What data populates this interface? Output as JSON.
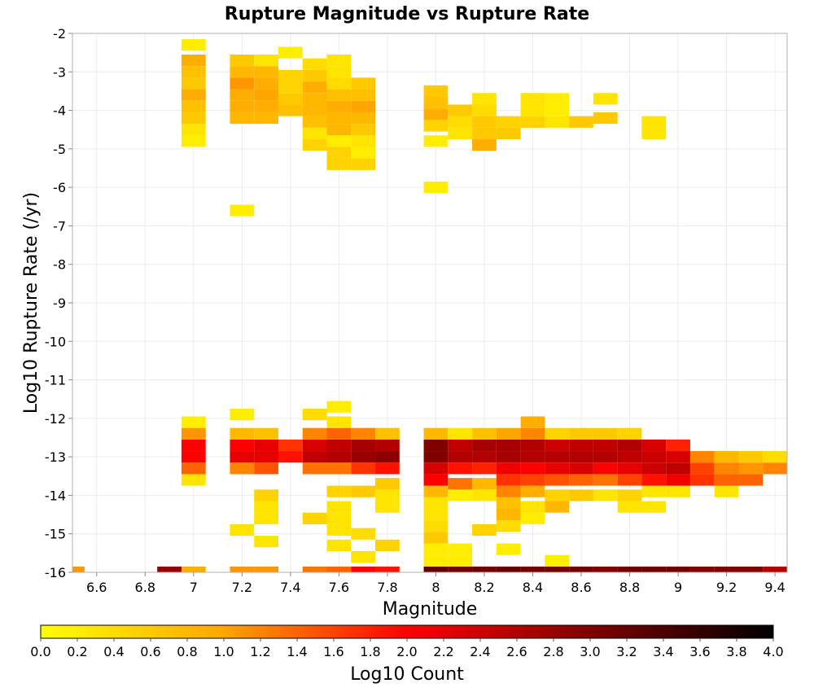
{
  "chart_data": {
    "type": "heatmap",
    "title": "Rupture Magnitude vs Rupture Rate",
    "xlabel": "Magnitude",
    "ylabel": "Log10 Rupture Rate (/yr)",
    "xlim": [
      6.5,
      9.45
    ],
    "ylim": [
      -16,
      -2
    ],
    "x_ticks": [
      "6.6",
      "6.8",
      "7",
      "7.2",
      "7.4",
      "7.6",
      "7.8",
      "8",
      "8.2",
      "8.4",
      "8.6",
      "8.8",
      "9",
      "9.2",
      "9.4"
    ],
    "y_ticks": [
      "-2",
      "-3",
      "-4",
      "-5",
      "-6",
      "-7",
      "-8",
      "-9",
      "-10",
      "-11",
      "-12",
      "-13",
      "-14",
      "-15",
      "-16"
    ],
    "grid": true,
    "cell_size": {
      "magnitude": 0.1,
      "log10_rate": 0.3
    },
    "colorbar": {
      "label": "Log10 Count",
      "range": [
        0,
        4
      ],
      "ticks": [
        "0.0",
        "0.2",
        "0.4",
        "0.6",
        "0.8",
        "1.0",
        "1.2",
        "1.4",
        "1.6",
        "1.8",
        "2.0",
        "2.2",
        "2.4",
        "2.6",
        "2.8",
        "3.0",
        "3.2",
        "3.4",
        "3.6",
        "3.8",
        "4.0"
      ],
      "colors": [
        "#ffff00",
        "#ffa500",
        "#ff0000",
        "#800000",
        "#000000"
      ]
    },
    "series": [
      {
        "magnitude": 7.0,
        "values": [
          [
            -16.0,
            0.9
          ],
          [
            -13.6,
            0.3
          ],
          [
            -13.3,
            1.4
          ],
          [
            -13.0,
            2.0
          ],
          [
            -12.7,
            2.0
          ],
          [
            -12.4,
            1.1
          ],
          [
            -12.1,
            0.2
          ],
          [
            -4.8,
            0.2
          ],
          [
            -4.5,
            0.3
          ],
          [
            -4.2,
            0.6
          ],
          [
            -3.9,
            0.7
          ],
          [
            -3.6,
            0.9
          ],
          [
            -3.3,
            0.6
          ],
          [
            -3.0,
            0.7
          ],
          [
            -2.7,
            0.9
          ],
          [
            -2.3,
            0.2
          ]
        ]
      },
      {
        "magnitude": 7.2,
        "values": [
          [
            -16.0,
            1.1
          ],
          [
            -14.9,
            0.3
          ],
          [
            -13.3,
            1.2
          ],
          [
            -13.0,
            2.2
          ],
          [
            -12.7,
            2.0
          ],
          [
            -12.4,
            0.8
          ],
          [
            -11.9,
            0.2
          ],
          [
            -6.6,
            0.2
          ],
          [
            -4.2,
            0.8
          ],
          [
            -3.9,
            0.9
          ],
          [
            -3.6,
            0.9
          ],
          [
            -3.3,
            1.1
          ],
          [
            -3.0,
            0.8
          ],
          [
            -2.7,
            0.6
          ]
        ]
      },
      {
        "magnitude": 7.3,
        "values": [
          [
            -16.0,
            1.1
          ],
          [
            -15.2,
            0.3
          ],
          [
            -14.6,
            0.3
          ],
          [
            -14.3,
            0.3
          ],
          [
            -14.0,
            0.5
          ],
          [
            -13.3,
            1.5
          ],
          [
            -13.0,
            2.2
          ],
          [
            -12.7,
            2.2
          ],
          [
            -12.4,
            0.7
          ],
          [
            -4.2,
            0.8
          ],
          [
            -3.9,
            0.9
          ],
          [
            -3.6,
            1.0
          ],
          [
            -3.3,
            0.9
          ],
          [
            -3.0,
            0.8
          ],
          [
            -2.7,
            0.3
          ]
        ]
      },
      {
        "magnitude": 7.4,
        "values": [
          [
            -13.0,
            1.9
          ],
          [
            -12.7,
            1.7
          ],
          [
            -4.0,
            0.7
          ],
          [
            -3.7,
            0.6
          ],
          [
            -3.4,
            0.5
          ],
          [
            -3.1,
            0.5
          ],
          [
            -2.5,
            0.2
          ]
        ]
      },
      {
        "magnitude": 7.5,
        "values": [
          [
            -16.0,
            1.3
          ],
          [
            -14.6,
            0.5
          ],
          [
            -13.3,
            1.3
          ],
          [
            -13.0,
            2.5
          ],
          [
            -12.7,
            2.3
          ],
          [
            -12.4,
            1.2
          ],
          [
            -11.9,
            0.4
          ],
          [
            -4.9,
            0.5
          ],
          [
            -4.6,
            0.3
          ],
          [
            -4.3,
            0.7
          ],
          [
            -4.0,
            0.8
          ],
          [
            -3.7,
            0.8
          ],
          [
            -3.4,
            0.9
          ],
          [
            -3.1,
            0.6
          ],
          [
            -2.8,
            0.4
          ]
        ]
      },
      {
        "magnitude": 7.6,
        "values": [
          [
            -16.0,
            1.4
          ],
          [
            -15.3,
            0.3
          ],
          [
            -14.9,
            0.3
          ],
          [
            -14.6,
            0.3
          ],
          [
            -14.3,
            0.3
          ],
          [
            -13.9,
            0.5
          ],
          [
            -13.3,
            1.3
          ],
          [
            -13.0,
            2.6
          ],
          [
            -12.7,
            2.5
          ],
          [
            -12.4,
            1.4
          ],
          [
            -12.1,
            0.3
          ],
          [
            -11.7,
            0.2
          ],
          [
            -5.4,
            0.5
          ],
          [
            -5.1,
            0.5
          ],
          [
            -4.8,
            0.2
          ],
          [
            -4.5,
            0.8
          ],
          [
            -4.2,
            0.8
          ],
          [
            -3.9,
            0.9
          ],
          [
            -3.6,
            0.7
          ],
          [
            -3.3,
            0.4
          ],
          [
            -3.0,
            0.3
          ],
          [
            -2.7,
            0.3
          ]
        ]
      },
      {
        "magnitude": 7.7,
        "values": [
          [
            -16.0,
            2.0
          ],
          [
            -15.6,
            0.3
          ],
          [
            -15.0,
            0.4
          ],
          [
            -13.9,
            0.6
          ],
          [
            -13.3,
            1.7
          ],
          [
            -13.0,
            2.8
          ],
          [
            -12.7,
            2.7
          ],
          [
            -12.4,
            1.2
          ],
          [
            -5.4,
            0.5
          ],
          [
            -5.1,
            0.2
          ],
          [
            -4.8,
            0.3
          ],
          [
            -4.5,
            0.6
          ],
          [
            -4.2,
            0.8
          ],
          [
            -3.9,
            1.0
          ],
          [
            -3.6,
            0.7
          ],
          [
            -3.3,
            0.6
          ]
        ]
      },
      {
        "magnitude": 7.8,
        "values": [
          [
            -16.0,
            1.9
          ],
          [
            -14.3,
            0.3
          ],
          [
            -14.0,
            0.3
          ],
          [
            -13.7,
            0.6
          ],
          [
            -13.3,
            1.9
          ],
          [
            -13.0,
            2.9
          ],
          [
            -12.7,
            2.6
          ],
          [
            -12.4,
            0.7
          ],
          [
            -15.3,
            0.5
          ]
        ]
      },
      {
        "magnitude": 8.0,
        "values": [
          [
            -16.0,
            3.2
          ],
          [
            -15.7,
            0.2
          ],
          [
            -15.4,
            0.2
          ],
          [
            -15.1,
            0.6
          ],
          [
            -14.8,
            0.4
          ],
          [
            -14.5,
            0.3
          ],
          [
            -14.2,
            0.3
          ],
          [
            -13.9,
            0.8
          ],
          [
            -13.6,
            2.0
          ],
          [
            -13.3,
            2.3
          ],
          [
            -13.0,
            3.0
          ],
          [
            -12.7,
            3.0
          ],
          [
            -12.4,
            0.8
          ],
          [
            -6.0,
            0.2
          ],
          [
            -4.8,
            0.2
          ],
          [
            -4.4,
            0.5
          ],
          [
            -4.1,
            0.9
          ],
          [
            -3.8,
            0.7
          ],
          [
            -3.5,
            0.6
          ]
        ]
      },
      {
        "magnitude": 8.1,
        "values": [
          [
            -16.0,
            3.1
          ],
          [
            -15.7,
            0.2
          ],
          [
            -15.4,
            0.2
          ],
          [
            -14.0,
            0.2
          ],
          [
            -13.7,
            1.3
          ],
          [
            -13.3,
            1.9
          ],
          [
            -13.0,
            2.6
          ],
          [
            -12.7,
            2.5
          ],
          [
            -12.4,
            0.3
          ],
          [
            -4.6,
            0.3
          ],
          [
            -4.3,
            0.4
          ],
          [
            -4.0,
            0.6
          ]
        ]
      },
      {
        "magnitude": 8.2,
        "values": [
          [
            -16.0,
            3.1
          ],
          [
            -14.9,
            0.5
          ],
          [
            -14.0,
            0.3
          ],
          [
            -13.7,
            0.8
          ],
          [
            -13.3,
            1.8
          ],
          [
            -13.0,
            2.6
          ],
          [
            -12.7,
            2.7
          ],
          [
            -12.4,
            0.7
          ],
          [
            -4.9,
            0.9
          ],
          [
            -4.6,
            0.6
          ],
          [
            -4.3,
            0.6
          ],
          [
            -4.0,
            0.4
          ],
          [
            -3.7,
            0.3
          ]
        ]
      },
      {
        "magnitude": 8.3,
        "values": [
          [
            -16.0,
            3.2
          ],
          [
            -15.4,
            0.2
          ],
          [
            -14.8,
            0.4
          ],
          [
            -14.5,
            0.8
          ],
          [
            -14.2,
            0.7
          ],
          [
            -13.9,
            1.2
          ],
          [
            -13.6,
            1.7
          ],
          [
            -13.3,
            2.1
          ],
          [
            -13.0,
            2.7
          ],
          [
            -12.7,
            2.7
          ],
          [
            -12.4,
            1.0
          ],
          [
            -4.6,
            0.6
          ],
          [
            -4.3,
            0.5
          ]
        ]
      },
      {
        "magnitude": 8.4,
        "values": [
          [
            -16.0,
            3.1
          ],
          [
            -14.6,
            0.2
          ],
          [
            -14.3,
            0.3
          ],
          [
            -13.9,
            0.9
          ],
          [
            -13.6,
            1.6
          ],
          [
            -13.3,
            2.0
          ],
          [
            -13.0,
            2.6
          ],
          [
            -12.7,
            2.6
          ],
          [
            -12.4,
            1.2
          ],
          [
            -12.1,
            0.9
          ],
          [
            -4.3,
            0.5
          ],
          [
            -4.0,
            0.3
          ],
          [
            -3.7,
            0.3
          ]
        ]
      },
      {
        "magnitude": 8.5,
        "values": [
          [
            -16.0,
            3.1
          ],
          [
            -15.7,
            0.2
          ],
          [
            -14.3,
            0.8
          ],
          [
            -14.0,
            0.5
          ],
          [
            -13.6,
            1.5
          ],
          [
            -13.3,
            2.2
          ],
          [
            -13.0,
            2.6
          ],
          [
            -12.7,
            2.4
          ],
          [
            -12.4,
            0.5
          ],
          [
            -4.3,
            0.3
          ],
          [
            -4.0,
            0.2
          ],
          [
            -3.7,
            0.2
          ]
        ]
      },
      {
        "magnitude": 8.6,
        "values": [
          [
            -16.0,
            3.1
          ],
          [
            -14.0,
            0.6
          ],
          [
            -13.6,
            1.4
          ],
          [
            -13.3,
            2.3
          ],
          [
            -13.0,
            2.6
          ],
          [
            -12.7,
            2.5
          ],
          [
            -12.4,
            0.6
          ],
          [
            -4.3,
            0.6
          ]
        ]
      },
      {
        "magnitude": 8.7,
        "values": [
          [
            -16.0,
            3.0
          ],
          [
            -14.0,
            0.3
          ],
          [
            -13.6,
            1.3
          ],
          [
            -13.3,
            2.0
          ],
          [
            -13.0,
            2.6
          ],
          [
            -12.7,
            2.5
          ],
          [
            -12.4,
            0.6
          ],
          [
            -4.2,
            0.6
          ],
          [
            -3.7,
            0.3
          ]
        ]
      },
      {
        "magnitude": 8.8,
        "values": [
          [
            -16.0,
            3.1
          ],
          [
            -14.3,
            0.3
          ],
          [
            -14.0,
            0.5
          ],
          [
            -13.6,
            1.6
          ],
          [
            -13.3,
            2.2
          ],
          [
            -13.0,
            2.5
          ],
          [
            -12.7,
            2.6
          ],
          [
            -12.4,
            0.5
          ]
        ]
      },
      {
        "magnitude": 8.9,
        "values": [
          [
            -16.0,
            3.1
          ],
          [
            -14.3,
            0.3
          ],
          [
            -13.9,
            0.3
          ],
          [
            -13.6,
            1.9
          ],
          [
            -13.3,
            2.4
          ],
          [
            -13.0,
            2.4
          ],
          [
            -12.7,
            2.3
          ],
          [
            -4.6,
            0.3
          ],
          [
            -4.3,
            0.3
          ]
        ]
      },
      {
        "magnitude": 9.0,
        "values": [
          [
            -16.0,
            3.1
          ],
          [
            -13.9,
            0.3
          ],
          [
            -13.6,
            2.1
          ],
          [
            -13.3,
            2.5
          ],
          [
            -13.0,
            2.3
          ],
          [
            -12.7,
            1.8
          ]
        ]
      },
      {
        "magnitude": 9.1,
        "values": [
          [
            -16.0,
            3.0
          ],
          [
            -13.6,
            1.7
          ],
          [
            -13.3,
            1.6
          ],
          [
            -13.0,
            1.2
          ]
        ]
      },
      {
        "magnitude": 9.2,
        "values": [
          [
            -16.0,
            3.0
          ],
          [
            -13.9,
            0.3
          ],
          [
            -13.6,
            1.4
          ],
          [
            -13.3,
            1.2
          ],
          [
            -13.0,
            0.8
          ]
        ]
      },
      {
        "magnitude": 9.3,
        "values": [
          [
            -16.0,
            3.0
          ],
          [
            -13.6,
            1.4
          ],
          [
            -13.3,
            1.1
          ],
          [
            -13.0,
            0.6
          ]
        ]
      },
      {
        "magnitude": 9.4,
        "values": [
          [
            -16.0,
            2.6
          ],
          [
            -13.3,
            1.2
          ],
          [
            -13.0,
            0.4
          ]
        ]
      },
      {
        "magnitude": 6.5,
        "values": [
          [
            -16.0,
            1.1
          ]
        ]
      },
      {
        "magnitude": 6.9,
        "values": [
          [
            -16.0,
            2.8
          ]
        ]
      }
    ]
  }
}
